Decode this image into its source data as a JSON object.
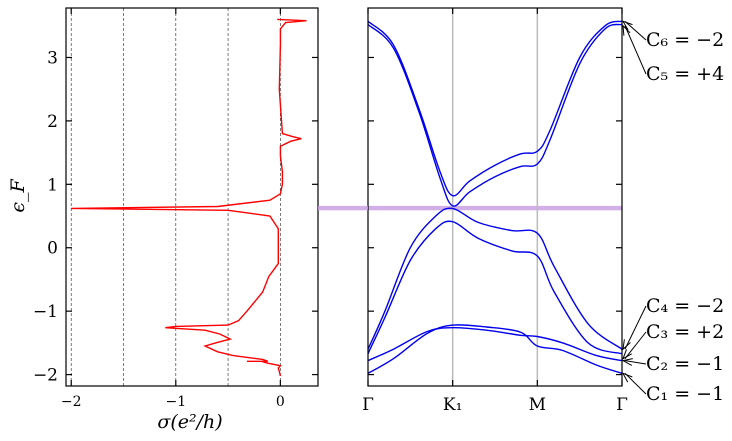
{
  "chart_data": [
    {
      "type": "line",
      "xlabel": "σ(e²/h)",
      "ylabel": "ϵ_F",
      "xlim": [
        -2.05,
        0.36
      ],
      "ylim": [
        -2.18,
        3.78
      ],
      "xticks": [
        -2,
        -1,
        0
      ],
      "xtick_labels": [
        "−2",
        "−1",
        "0"
      ],
      "yticks": [
        -2,
        -1,
        0,
        1,
        2,
        3
      ],
      "ytick_labels": [
        "−2",
        "−1",
        "0",
        "1",
        "2",
        "3"
      ],
      "vertical_gridlines": [
        -2,
        -1.5,
        -1,
        -0.5,
        0
      ],
      "series": [
        {
          "color": "#ff0000",
          "points": [
            [
              0.0,
              -2.02
            ],
            [
              -0.01,
              -1.95
            ],
            [
              -0.02,
              -1.9
            ],
            [
              0.0,
              -1.86
            ],
            [
              -0.12,
              -1.82
            ],
            [
              -0.18,
              -1.79
            ],
            [
              -0.32,
              -1.79
            ],
            [
              -0.12,
              -1.79
            ],
            [
              -0.17,
              -1.76
            ],
            [
              -0.45,
              -1.7
            ],
            [
              -0.6,
              -1.64
            ],
            [
              -0.72,
              -1.55
            ],
            [
              -0.62,
              -1.5
            ],
            [
              -0.48,
              -1.44
            ],
            [
              -0.58,
              -1.36
            ],
            [
              -0.72,
              -1.3
            ],
            [
              -1.1,
              -1.26
            ],
            [
              -1.0,
              -1.24
            ],
            [
              -0.5,
              -1.22
            ],
            [
              -0.4,
              -1.15
            ],
            [
              -0.32,
              -1.0
            ],
            [
              -0.17,
              -0.7
            ],
            [
              -0.11,
              -0.45
            ],
            [
              -0.02,
              -0.25
            ],
            [
              -0.02,
              -0.05
            ],
            [
              -0.02,
              0.05
            ],
            [
              -0.02,
              0.15
            ],
            [
              -0.02,
              0.3
            ],
            [
              -0.1,
              0.5
            ],
            [
              -0.5,
              0.59
            ],
            [
              -2.0,
              0.62
            ],
            [
              -0.6,
              0.65
            ],
            [
              -0.1,
              0.75
            ],
            [
              0.0,
              0.85
            ],
            [
              0.02,
              1.0
            ],
            [
              0.02,
              1.2
            ],
            [
              0.0,
              1.45
            ],
            [
              0.0,
              1.6
            ],
            [
              0.1,
              1.68
            ],
            [
              0.2,
              1.72
            ],
            [
              0.12,
              1.75
            ],
            [
              0.02,
              1.8
            ],
            [
              -0.01,
              2.5
            ],
            [
              0.0,
              3.2
            ],
            [
              0.0,
              3.45
            ],
            [
              0.05,
              3.55
            ],
            [
              0.25,
              3.58
            ],
            [
              -0.03,
              3.6
            ]
          ]
        }
      ]
    },
    {
      "type": "line",
      "xlabel": "",
      "ylabel": "",
      "ylim": [
        -2.18,
        3.78
      ],
      "xticks": [
        0,
        1,
        2,
        3
      ],
      "xtick_labels": [
        "Γ",
        "K₁",
        "M",
        "Γ"
      ],
      "vertical_gridlines": [
        1,
        2
      ],
      "highlight_band": {
        "y_from": 0.59,
        "y_to": 0.66,
        "color": "#c79be0"
      },
      "series": [
        {
          "name": "band6",
          "color": "#0000ee",
          "points": [
            [
              0,
              3.57
            ],
            [
              0.3,
              3.2
            ],
            [
              0.6,
              2.2
            ],
            [
              0.85,
              1.2
            ],
            [
              1,
              0.82
            ],
            [
              1.2,
              1.05
            ],
            [
              1.5,
              1.3
            ],
            [
              1.8,
              1.48
            ],
            [
              2,
              1.52
            ],
            [
              2.15,
              1.85
            ],
            [
              2.5,
              3.0
            ],
            [
              2.8,
              3.5
            ],
            [
              3,
              3.57
            ]
          ]
        },
        {
          "name": "band5",
          "color": "#0000ee",
          "points": [
            [
              0,
              3.52
            ],
            [
              0.3,
              3.15
            ],
            [
              0.6,
              2.15
            ],
            [
              0.85,
              1.1
            ],
            [
              1,
              0.66
            ],
            [
              1.2,
              0.88
            ],
            [
              1.5,
              1.12
            ],
            [
              1.8,
              1.28
            ],
            [
              2,
              1.32
            ],
            [
              2.15,
              1.7
            ],
            [
              2.5,
              2.9
            ],
            [
              2.8,
              3.45
            ],
            [
              3,
              3.52
            ]
          ]
        },
        {
          "name": "band4",
          "color": "#0000ee",
          "points": [
            [
              0,
              -1.6
            ],
            [
              0.2,
              -1.0
            ],
            [
              0.5,
              0.0
            ],
            [
              0.8,
              0.5
            ],
            [
              1,
              0.62
            ],
            [
              1.3,
              0.4
            ],
            [
              1.7,
              0.27
            ],
            [
              2,
              0.23
            ],
            [
              2.2,
              -0.3
            ],
            [
              2.6,
              -1.2
            ],
            [
              3,
              -1.6
            ]
          ]
        },
        {
          "name": "band3",
          "color": "#0000ee",
          "points": [
            [
              0,
              -1.67
            ],
            [
              0.2,
              -1.1
            ],
            [
              0.5,
              -0.2
            ],
            [
              0.8,
              0.3
            ],
            [
              1,
              0.41
            ],
            [
              1.3,
              0.15
            ],
            [
              1.7,
              -0.05
            ],
            [
              2,
              -0.13
            ],
            [
              2.2,
              -0.7
            ],
            [
              2.6,
              -1.5
            ],
            [
              3,
              -1.67
            ]
          ]
        },
        {
          "name": "band2",
          "color": "#0000ee",
          "points": [
            [
              0,
              -1.78
            ],
            [
              0.3,
              -1.6
            ],
            [
              0.7,
              -1.32
            ],
            [
              1,
              -1.26
            ],
            [
              1.4,
              -1.3
            ],
            [
              1.8,
              -1.38
            ],
            [
              2,
              -1.4
            ],
            [
              2.3,
              -1.5
            ],
            [
              2.7,
              -1.7
            ],
            [
              3,
              -1.78
            ]
          ]
        },
        {
          "name": "band1",
          "color": "#0000ee",
          "points": [
            [
              0,
              -1.98
            ],
            [
              0.3,
              -1.75
            ],
            [
              0.7,
              -1.35
            ],
            [
              1,
              -1.22
            ],
            [
              1.4,
              -1.25
            ],
            [
              1.8,
              -1.33
            ],
            [
              2,
              -1.55
            ],
            [
              2.3,
              -1.62
            ],
            [
              2.7,
              -1.85
            ],
            [
              3,
              -1.98
            ]
          ]
        }
      ],
      "annotations": [
        {
          "text": "C₆ = −2",
          "target_y": 3.57
        },
        {
          "text": "C₅ = +4",
          "target_y": 3.5
        },
        {
          "text": "C₄ = −2",
          "target_y": -1.6
        },
        {
          "text": "C₃ = +2",
          "target_y": -1.75
        },
        {
          "text": "C₂ = −1",
          "target_y": -1.78
        },
        {
          "text": "C₁ = −1",
          "target_y": -1.98
        }
      ]
    }
  ]
}
